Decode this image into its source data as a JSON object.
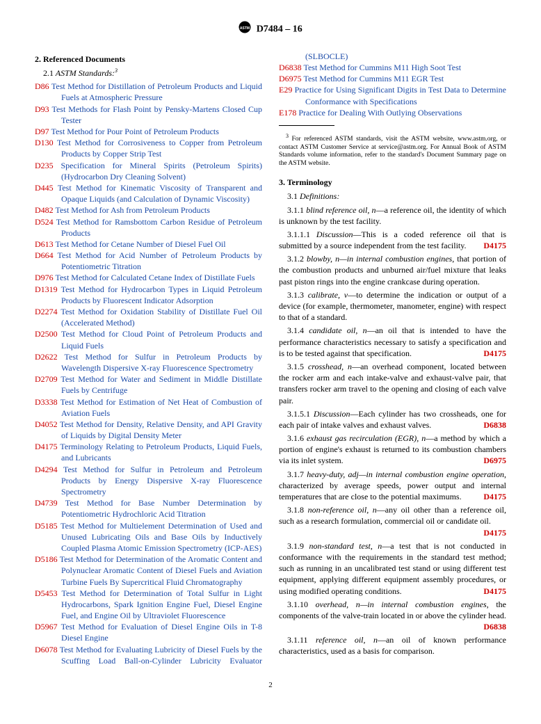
{
  "header": {
    "designation": "D7484 – 16"
  },
  "section2": {
    "heading": "2.  Referenced Documents",
    "sub": "2.1",
    "sub_label": "ASTM Standards:",
    "footnote_marker": "3",
    "refs": [
      {
        "code": "D86",
        "title": "Test Method for Distillation of Petroleum Products and Liquid Fuels at Atmospheric Pressure"
      },
      {
        "code": "D93",
        "title": "Test Methods for Flash Point by Pensky-Martens Closed Cup Tester"
      },
      {
        "code": "D97",
        "title": "Test Method for Pour Point of Petroleum Products"
      },
      {
        "code": "D130",
        "title": "Test Method for Corrosiveness to Copper from Petroleum Products by Copper Strip Test"
      },
      {
        "code": "D235",
        "title": "Specification for Mineral Spirits (Petroleum Spirits) (Hydrocarbon Dry Cleaning Solvent)"
      },
      {
        "code": "D445",
        "title": "Test Method for Kinematic Viscosity of Transparent and Opaque Liquids (and Calculation of Dynamic Viscosity)"
      },
      {
        "code": "D482",
        "title": "Test Method for Ash from Petroleum Products"
      },
      {
        "code": "D524",
        "title": "Test Method for Ramsbottom Carbon Residue of Petroleum Products"
      },
      {
        "code": "D613",
        "title": "Test Method for Cetane Number of Diesel Fuel Oil"
      },
      {
        "code": "D664",
        "title": "Test Method for Acid Number of Petroleum Products by Potentiometric Titration"
      },
      {
        "code": "D976",
        "title": "Test Method for Calculated Cetane Index of Distillate Fuels"
      },
      {
        "code": "D1319",
        "title": "Test Method for Hydrocarbon Types in Liquid Petroleum Products by Fluorescent Indicator Adsorption"
      },
      {
        "code": "D2274",
        "title": "Test Method for Oxidation Stability of Distillate Fuel Oil (Accelerated Method)"
      },
      {
        "code": "D2500",
        "title": "Test Method for Cloud Point of Petroleum Products and Liquid Fuels"
      },
      {
        "code": "D2622",
        "title": "Test Method for Sulfur in Petroleum Products by Wavelength Dispersive X-ray Fluorescence Spectrometry"
      },
      {
        "code": "D2709",
        "title": "Test Method for Water and Sediment in Middle Distillate Fuels by Centrifuge"
      },
      {
        "code": "D3338",
        "title": "Test Method for Estimation of Net Heat of Combustion of Aviation Fuels"
      },
      {
        "code": "D4052",
        "title": "Test Method for Density, Relative Density, and API Gravity of Liquids by Digital Density Meter"
      },
      {
        "code": "D4175",
        "title": "Terminology Relating to Petroleum Products, Liquid Fuels, and Lubricants"
      },
      {
        "code": "D4294",
        "title": "Test Method for Sulfur in Petroleum and Petroleum Products by Energy Dispersive X-ray Fluorescence Spectrometry"
      },
      {
        "code": "D4739",
        "title": "Test Method for Base Number Determination by Potentiometric Hydrochloric Acid Titration"
      },
      {
        "code": "D5185",
        "title": "Test Method for Multielement Determination of Used and Unused Lubricating Oils and Base Oils by Inductively Coupled Plasma Atomic Emission Spectrometry (ICP-AES)"
      },
      {
        "code": "D5186",
        "title": "Test Method for Determination of the Aromatic Content and Polynuclear Aromatic Content of Diesel Fuels and Aviation Turbine Fuels By Supercritical Fluid Chromatography"
      },
      {
        "code": "D5453",
        "title": "Test Method for Determination of Total Sulfur in Light Hydrocarbons, Spark Ignition Engine Fuel, Diesel Engine Fuel, and Engine Oil by Ultraviolet Fluorescence"
      },
      {
        "code": "D5967",
        "title": "Test Method for Evaluation of Diesel Engine Oils in T-8 Diesel Engine"
      },
      {
        "code": "D6078",
        "title": "Test Method for Evaluating Lubricity of Diesel Fuels by the Scuffing Load Ball-on-Cylinder Lubricity Evaluator (SLBOCLE)"
      },
      {
        "code": "D6838",
        "title": "Test Method for Cummins M11 High Soot Test"
      },
      {
        "code": "D6975",
        "title": "Test Method for Cummins M11 EGR Test"
      },
      {
        "code": "E29",
        "title": "Practice for Using Significant Digits in Test Data to Determine Conformance with Specifications"
      },
      {
        "code": "E178",
        "title": "Practice for Dealing With Outlying Observations"
      }
    ]
  },
  "section3": {
    "heading": "3.  Terminology",
    "defs_heading_num": "3.1",
    "defs_heading": "Definitions:",
    "terms": [
      {
        "num": "3.1.1",
        "name": "blind reference oil, n",
        "body": "—a reference oil, the identity of which is unknown by the test facility.",
        "ref": ""
      },
      {
        "num": "3.1.1.1",
        "name": "Discussion",
        "body": "—This is a coded reference oil that is submitted by a source independent from the test facility.",
        "ref": "D4175"
      },
      {
        "num": "3.1.2",
        "name": "blowby, n—in internal combustion engines",
        "body": ", that portion of the combustion products and unburned air/fuel mixture that leaks past piston rings into the engine crankcase during operation.",
        "ref": ""
      },
      {
        "num": "3.1.3",
        "name": "calibrate, v",
        "body": "—to determine the indication or output of a device (for example, thermometer, manometer, engine) with respect to that of a standard.",
        "ref": ""
      },
      {
        "num": "3.1.4",
        "name": "candidate oil, n",
        "body": "—an oil that is intended to have the performance characteristics necessary to satisfy a specification and is to be tested against that specification.",
        "ref": "D4175"
      },
      {
        "num": "3.1.5",
        "name": "crosshead, n",
        "body": "—an overhead component, located between the rocker arm and each intake-valve and exhaust-valve pair, that transfers rocker arm travel to the opening and closing of each valve pair.",
        "ref": ""
      },
      {
        "num": "3.1.5.1",
        "name": "Discussion",
        "body": "—Each cylinder has two crossheads, one for each pair of intake valves and exhaust valves.",
        "ref": "D6838"
      },
      {
        "num": "3.1.6",
        "name": "exhaust gas recirculation (EGR), n",
        "body": "—a method by which a portion of engine's exhaust is returned to its combustion chambers via its inlet system.",
        "ref": "D6975"
      },
      {
        "num": "3.1.7",
        "name": "heavy-duty, adj—in internal combustion engine operation",
        "body": ", characterized by average speeds, power output and internal temperatures that are close to the potential maximums.",
        "ref": "D4175"
      },
      {
        "num": "3.1.8",
        "name": "non-reference oil, n",
        "body": "—any oil other than a reference oil, such as a research formulation, commercial oil or candidate oil.",
        "ref": "D4175"
      },
      {
        "num": "3.1.9",
        "name": "non-standard test, n",
        "body": "—a test that is not conducted in conformance with the requirements in the standard test method; such as running in an uncalibrated test stand or using different test equipment, applying different equipment assembly procedures, or using modified operating conditions.",
        "ref": "D4175"
      },
      {
        "num": "3.1.10",
        "name": "overhead, n—in internal combustion engines",
        "body": ", the components of the valve-train located in or above the cylinder head.",
        "ref": "D6838"
      },
      {
        "num": "3.1.11",
        "name": "reference oil, n",
        "body": "—an oil of known performance characteristics, used as a basis for comparison.",
        "ref": ""
      }
    ]
  },
  "footnote": {
    "marker": "3",
    "text": "For referenced ASTM standards, visit the ASTM website, www.astm.org, or contact ASTM Customer Service at service@astm.org. For Annual Book of ASTM Standards volume information, refer to the standard's Document Summary page on the ASTM website."
  },
  "page": "2"
}
